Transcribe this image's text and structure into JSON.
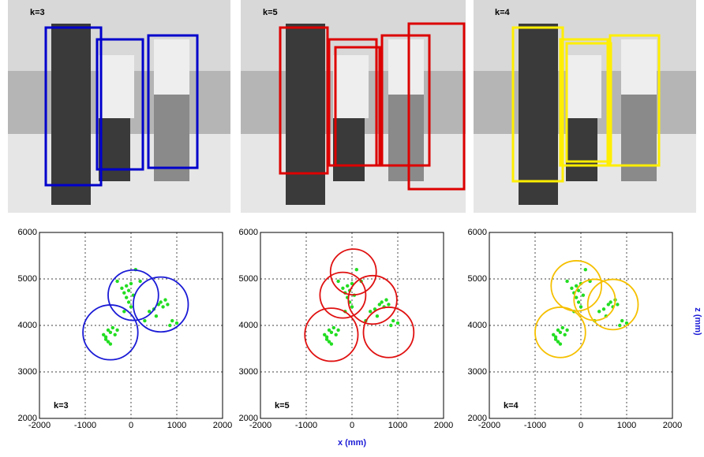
{
  "images": [
    {
      "label": "k=3"
    },
    {
      "label": "k=5"
    },
    {
      "label": "k=4"
    }
  ],
  "chart_data": [
    {
      "type": "scatter",
      "annotation": "k=3",
      "xlim": [
        -2000,
        2000
      ],
      "ylim": [
        2000,
        6000
      ],
      "xticks": [
        -2000,
        -1000,
        0,
        1000,
        2000
      ],
      "yticks": [
        2000,
        3000,
        4000,
        5000,
        6000
      ],
      "grid": true,
      "series": [
        {
          "color": "#22dd22",
          "x": [
            -600,
            -550,
            -500,
            -450,
            -400,
            -350,
            -300,
            -500,
            -450,
            -550,
            -200,
            -150,
            -100,
            -50,
            0,
            -100,
            -50,
            100,
            50,
            200,
            -300,
            -150,
            0,
            500,
            600,
            650,
            700,
            800,
            750,
            900,
            1000,
            550,
            400,
            300,
            850
          ],
          "y": [
            3800,
            3750,
            3900,
            3850,
            3950,
            3800,
            3900,
            3650,
            3600,
            3700,
            4800,
            4700,
            4850,
            4750,
            4900,
            4600,
            4500,
            5200,
            4650,
            4950,
            4950,
            4300,
            4400,
            4350,
            4450,
            4500,
            4400,
            4450,
            4550,
            4100,
            4050,
            4200,
            4300,
            4100,
            4000
          ]
        }
      ],
      "circle_color": "#1a1ad6",
      "circles": [
        {
          "x": -450,
          "y": 3850,
          "r": 600
        },
        {
          "x": 50,
          "y": 4650,
          "r": 550
        },
        {
          "x": 650,
          "y": 4450,
          "r": 600
        }
      ]
    },
    {
      "type": "scatter",
      "annotation": "k=5",
      "xlabel": "x (mm)",
      "xlim": [
        -2000,
        2000
      ],
      "ylim": [
        2000,
        6000
      ],
      "xticks": [
        -2000,
        -1000,
        0,
        1000,
        2000
      ],
      "yticks": [
        2000,
        3000,
        4000,
        5000,
        6000
      ],
      "grid": true,
      "series": [
        {
          "color": "#22dd22",
          "x": [
            -600,
            -550,
            -500,
            -450,
            -400,
            -350,
            -300,
            -500,
            -450,
            -550,
            -200,
            -150,
            -100,
            -50,
            0,
            -100,
            -50,
            100,
            50,
            200,
            -300,
            -150,
            0,
            500,
            600,
            650,
            700,
            800,
            750,
            900,
            1000,
            550,
            400,
            300,
            850
          ],
          "y": [
            3800,
            3750,
            3900,
            3850,
            3950,
            3800,
            3900,
            3650,
            3600,
            3700,
            4800,
            4700,
            4850,
            4750,
            4900,
            4600,
            4500,
            5200,
            4650,
            4950,
            4950,
            4300,
            4400,
            4350,
            4450,
            4500,
            4400,
            4450,
            4550,
            4100,
            4050,
            4200,
            4300,
            4100,
            4000
          ]
        }
      ],
      "circle_color": "#e01010",
      "circles": [
        {
          "x": -450,
          "y": 3800,
          "r": 580
        },
        {
          "x": 30,
          "y": 5150,
          "r": 500
        },
        {
          "x": -200,
          "y": 4650,
          "r": 500
        },
        {
          "x": 450,
          "y": 4550,
          "r": 530
        },
        {
          "x": 800,
          "y": 3850,
          "r": 550
        }
      ]
    },
    {
      "type": "scatter",
      "annotation": "k=4",
      "ylabel": "z (mm)",
      "xlim": [
        -2000,
        2000
      ],
      "ylim": [
        2000,
        6000
      ],
      "xticks": [
        -2000,
        -1000,
        0,
        1000,
        2000
      ],
      "yticks": [
        2000,
        3000,
        4000,
        5000,
        6000
      ],
      "grid": true,
      "series": [
        {
          "color": "#22dd22",
          "x": [
            -600,
            -550,
            -500,
            -450,
            -400,
            -350,
            -300,
            -500,
            -450,
            -550,
            -200,
            -150,
            -100,
            -50,
            0,
            -100,
            -50,
            100,
            50,
            200,
            -300,
            -150,
            0,
            500,
            600,
            650,
            700,
            800,
            750,
            900,
            1000,
            550,
            400,
            300,
            850
          ],
          "y": [
            3800,
            3750,
            3900,
            3850,
            3950,
            3800,
            3900,
            3650,
            3600,
            3700,
            4800,
            4700,
            4850,
            4750,
            4900,
            4600,
            4500,
            5200,
            4650,
            4950,
            4950,
            4300,
            4400,
            4350,
            4450,
            4500,
            4400,
            4450,
            4550,
            4100,
            4050,
            4200,
            4300,
            4100,
            4000
          ]
        }
      ],
      "circle_color": "#f5c000",
      "circles": [
        {
          "x": -450,
          "y": 3850,
          "r": 550
        },
        {
          "x": -100,
          "y": 4850,
          "r": 550
        },
        {
          "x": 300,
          "y": 4550,
          "r": 450
        },
        {
          "x": 700,
          "y": 4450,
          "r": 550
        }
      ]
    }
  ]
}
